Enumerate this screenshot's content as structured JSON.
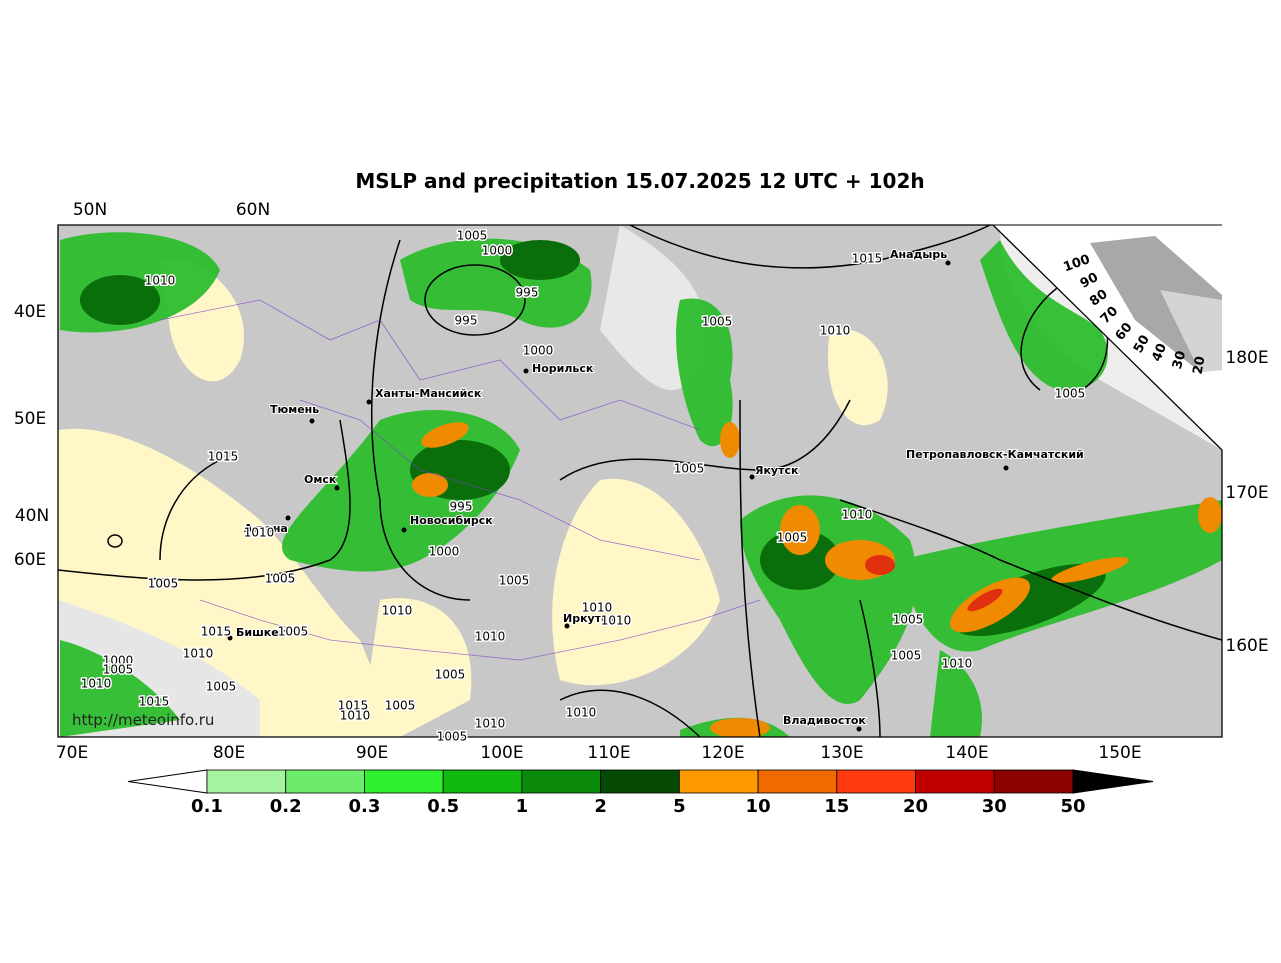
{
  "title": "MSLP and precipitation 15.07.2025 12 UTC + 102h",
  "url": "http://meteoinfo.ru",
  "top_labels": [
    "50N",
    "60N"
  ],
  "left_labels": [
    "40E",
    "50E",
    "40N",
    "60E"
  ],
  "right_labels": [
    "180E",
    "170E",
    "160E"
  ],
  "bottom_labels": [
    "70E",
    "80E",
    "90E",
    "100E",
    "110E",
    "120E",
    "130E",
    "140E",
    "150E"
  ],
  "cities": [
    "Анадырь",
    "Норильск",
    "Ханты-Мансийск",
    "Тюмень",
    "Якутск",
    "Петропавловск-Камчатский",
    "Омск",
    "Астана",
    "Новосибирск",
    "Иркутск",
    "Бишкек",
    "Владивосток"
  ],
  "isobar_labels": [
    "1005",
    "1000",
    "995",
    "995",
    "1000",
    "1010",
    "1015",
    "1005",
    "1010",
    "1005",
    "1015",
    "1005",
    "1010",
    "1010",
    "995",
    "1000",
    "1005",
    "1005",
    "1005",
    "1005",
    "1010",
    "1010",
    "1010",
    "1005",
    "1015",
    "1005",
    "1010",
    "1010",
    "1005",
    "1010",
    "1000",
    "1005",
    "1010",
    "1005",
    "1005",
    "1015",
    "1015",
    "1005",
    "1010",
    "1010",
    "1010",
    "1005"
  ],
  "wind_scale_labels": [
    "100",
    "90",
    "80",
    "70",
    "60",
    "50",
    "40",
    "30",
    "20"
  ],
  "colorbar_labels": [
    "0.1",
    "0.2",
    "0.3",
    "0.5",
    "1",
    "2",
    "5",
    "10",
    "15",
    "20",
    "30",
    "50"
  ]
}
